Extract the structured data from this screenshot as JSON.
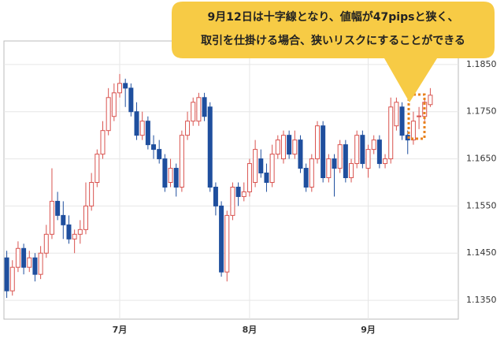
{
  "callout": {
    "lines": [
      "9月12日は十字線となり、値幅が47pipsと狭く、",
      "取引を仕掛ける場合、狭いリスクにすることができる"
    ]
  },
  "chart_data": {
    "type": "candlestick",
    "categories": [
      null,
      null,
      null,
      null,
      null,
      null,
      null,
      null,
      null,
      null,
      null,
      null,
      null,
      null,
      null,
      null,
      null,
      null,
      null,
      null,
      "7月",
      null,
      null,
      null,
      null,
      null,
      null,
      null,
      null,
      null,
      null,
      null,
      null,
      null,
      null,
      null,
      null,
      null,
      null,
      null,
      null,
      null,
      null,
      "8月",
      null,
      null,
      null,
      null,
      null,
      null,
      null,
      null,
      null,
      null,
      null,
      null,
      null,
      null,
      null,
      null,
      null,
      null,
      null,
      null,
      "9月",
      null,
      null,
      null,
      null,
      null,
      null,
      null,
      null,
      null,
      null,
      null
    ],
    "open": [
      1.144,
      1.137,
      1.142,
      1.146,
      1.142,
      1.144,
      1.1405,
      1.145,
      1.149,
      1.156,
      1.153,
      1.151,
      1.148,
      1.149,
      1.15,
      1.155,
      1.16,
      1.166,
      1.171,
      1.174,
      1.179,
      1.181,
      1.18,
      1.175,
      1.17,
      1.173,
      1.168,
      1.167,
      1.165,
      1.16,
      1.163,
      1.159,
      1.17,
      1.173,
      1.173,
      1.178,
      1.176,
      1.159,
      1.155,
      1.141,
      1.153,
      1.159,
      1.157,
      1.158,
      1.16,
      1.165,
      1.162,
      1.16,
      1.166,
      1.165,
      1.17,
      1.166,
      1.169,
      1.163,
      1.159,
      1.165,
      1.172,
      1.161,
      1.165,
      1.163,
      1.168,
      1.161,
      1.164,
      1.17,
      1.163,
      1.167,
      1.169,
      1.164,
      1.165,
      1.172,
      1.176,
      1.17,
      1.169,
      1.174,
      1.174,
      1.1765
    ],
    "high": [
      1.1455,
      1.1435,
      1.1475,
      1.147,
      1.1455,
      1.145,
      1.1465,
      1.151,
      1.163,
      1.158,
      1.156,
      1.153,
      1.15,
      1.152,
      1.16,
      1.162,
      1.167,
      1.173,
      1.18,
      1.181,
      1.183,
      1.182,
      1.181,
      1.177,
      1.175,
      1.174,
      1.17,
      1.169,
      1.166,
      1.165,
      1.164,
      1.171,
      1.175,
      1.178,
      1.179,
      1.179,
      1.177,
      1.16,
      1.156,
      1.154,
      1.16,
      1.16,
      1.16,
      1.165,
      1.169,
      1.167,
      1.164,
      1.168,
      1.17,
      1.171,
      1.171,
      1.171,
      1.17,
      1.164,
      1.166,
      1.173,
      1.173,
      1.166,
      1.166,
      1.169,
      1.169,
      1.165,
      1.171,
      1.171,
      1.168,
      1.17,
      1.17,
      1.166,
      1.178,
      1.178,
      1.177,
      1.171,
      1.175,
      1.176,
      1.178,
      1.18
    ],
    "low": [
      1.1355,
      1.136,
      1.141,
      1.1405,
      1.141,
      1.139,
      1.1395,
      1.144,
      1.148,
      1.152,
      1.148,
      1.147,
      1.145,
      1.147,
      1.149,
      1.154,
      1.159,
      1.165,
      1.17,
      1.173,
      1.178,
      1.176,
      1.174,
      1.169,
      1.169,
      1.167,
      1.165,
      1.164,
      1.158,
      1.159,
      1.157,
      1.158,
      1.169,
      1.172,
      1.172,
      1.173,
      1.158,
      1.153,
      1.14,
      1.139,
      1.152,
      1.155,
      1.156,
      1.157,
      1.159,
      1.161,
      1.158,
      1.159,
      1.165,
      1.164,
      1.165,
      1.165,
      1.162,
      1.158,
      1.158,
      1.164,
      1.16,
      1.16,
      1.157,
      1.162,
      1.16,
      1.16,
      1.163,
      1.163,
      1.161,
      1.166,
      1.163,
      1.163,
      1.164,
      1.171,
      1.169,
      1.166,
      1.168,
      1.1713,
      1.173,
      1.176
    ],
    "close": [
      1.137,
      1.142,
      1.146,
      1.142,
      1.144,
      1.1405,
      1.145,
      1.149,
      1.156,
      1.153,
      1.151,
      1.148,
      1.149,
      1.15,
      1.155,
      1.16,
      1.166,
      1.171,
      1.178,
      1.179,
      1.181,
      1.18,
      1.175,
      1.17,
      1.173,
      1.168,
      1.167,
      1.165,
      1.159,
      1.163,
      1.159,
      1.17,
      1.173,
      1.177,
      1.178,
      1.174,
      1.159,
      1.155,
      1.141,
      1.153,
      1.159,
      1.157,
      1.158,
      1.164,
      1.167,
      1.162,
      1.16,
      1.166,
      1.169,
      1.17,
      1.166,
      1.169,
      1.163,
      1.159,
      1.165,
      1.172,
      1.161,
      1.165,
      1.163,
      1.168,
      1.161,
      1.164,
      1.17,
      1.164,
      1.167,
      1.169,
      1.164,
      1.165,
      1.176,
      1.177,
      1.17,
      1.169,
      1.173,
      1.1741,
      1.177,
      1.1785
    ],
    "ylim": [
      1.131,
      1.19
    ],
    "yticks": [
      {
        "value": 1.135,
        "label": "1.1350"
      },
      {
        "value": 1.145,
        "label": "1.1450"
      },
      {
        "value": 1.155,
        "label": "1.1550"
      },
      {
        "value": 1.165,
        "label": "1.1650"
      },
      {
        "value": 1.175,
        "label": "1.1750"
      },
      {
        "value": 1.185,
        "label": "1.1850"
      }
    ],
    "grid": true,
    "up_color": "#d9534f",
    "down_color": "#1f4f9e"
  }
}
